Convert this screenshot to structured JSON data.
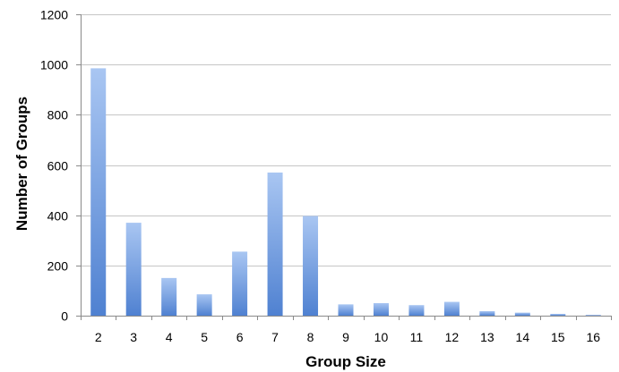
{
  "chart_data": {
    "type": "bar",
    "title": "",
    "xlabel": "Group Size",
    "ylabel": "Number of Groups",
    "categories": [
      "2",
      "3",
      "4",
      "5",
      "6",
      "7",
      "8",
      "9",
      "10",
      "11",
      "12",
      "13",
      "14",
      "15",
      "16"
    ],
    "values": [
      985,
      370,
      150,
      85,
      255,
      570,
      397,
      45,
      50,
      42,
      55,
      18,
      12,
      7,
      3
    ],
    "ylim": [
      0,
      1200
    ],
    "yticks": [
      "0",
      "200",
      "400",
      "600",
      "800",
      "1000",
      "1200"
    ],
    "grid": true,
    "legend": "none",
    "colors": {
      "bar_top": "#a9c6f2",
      "bar_bottom": "#4f81d1",
      "grid": "#c6c6c6",
      "axis": "#8a8a8a"
    }
  }
}
